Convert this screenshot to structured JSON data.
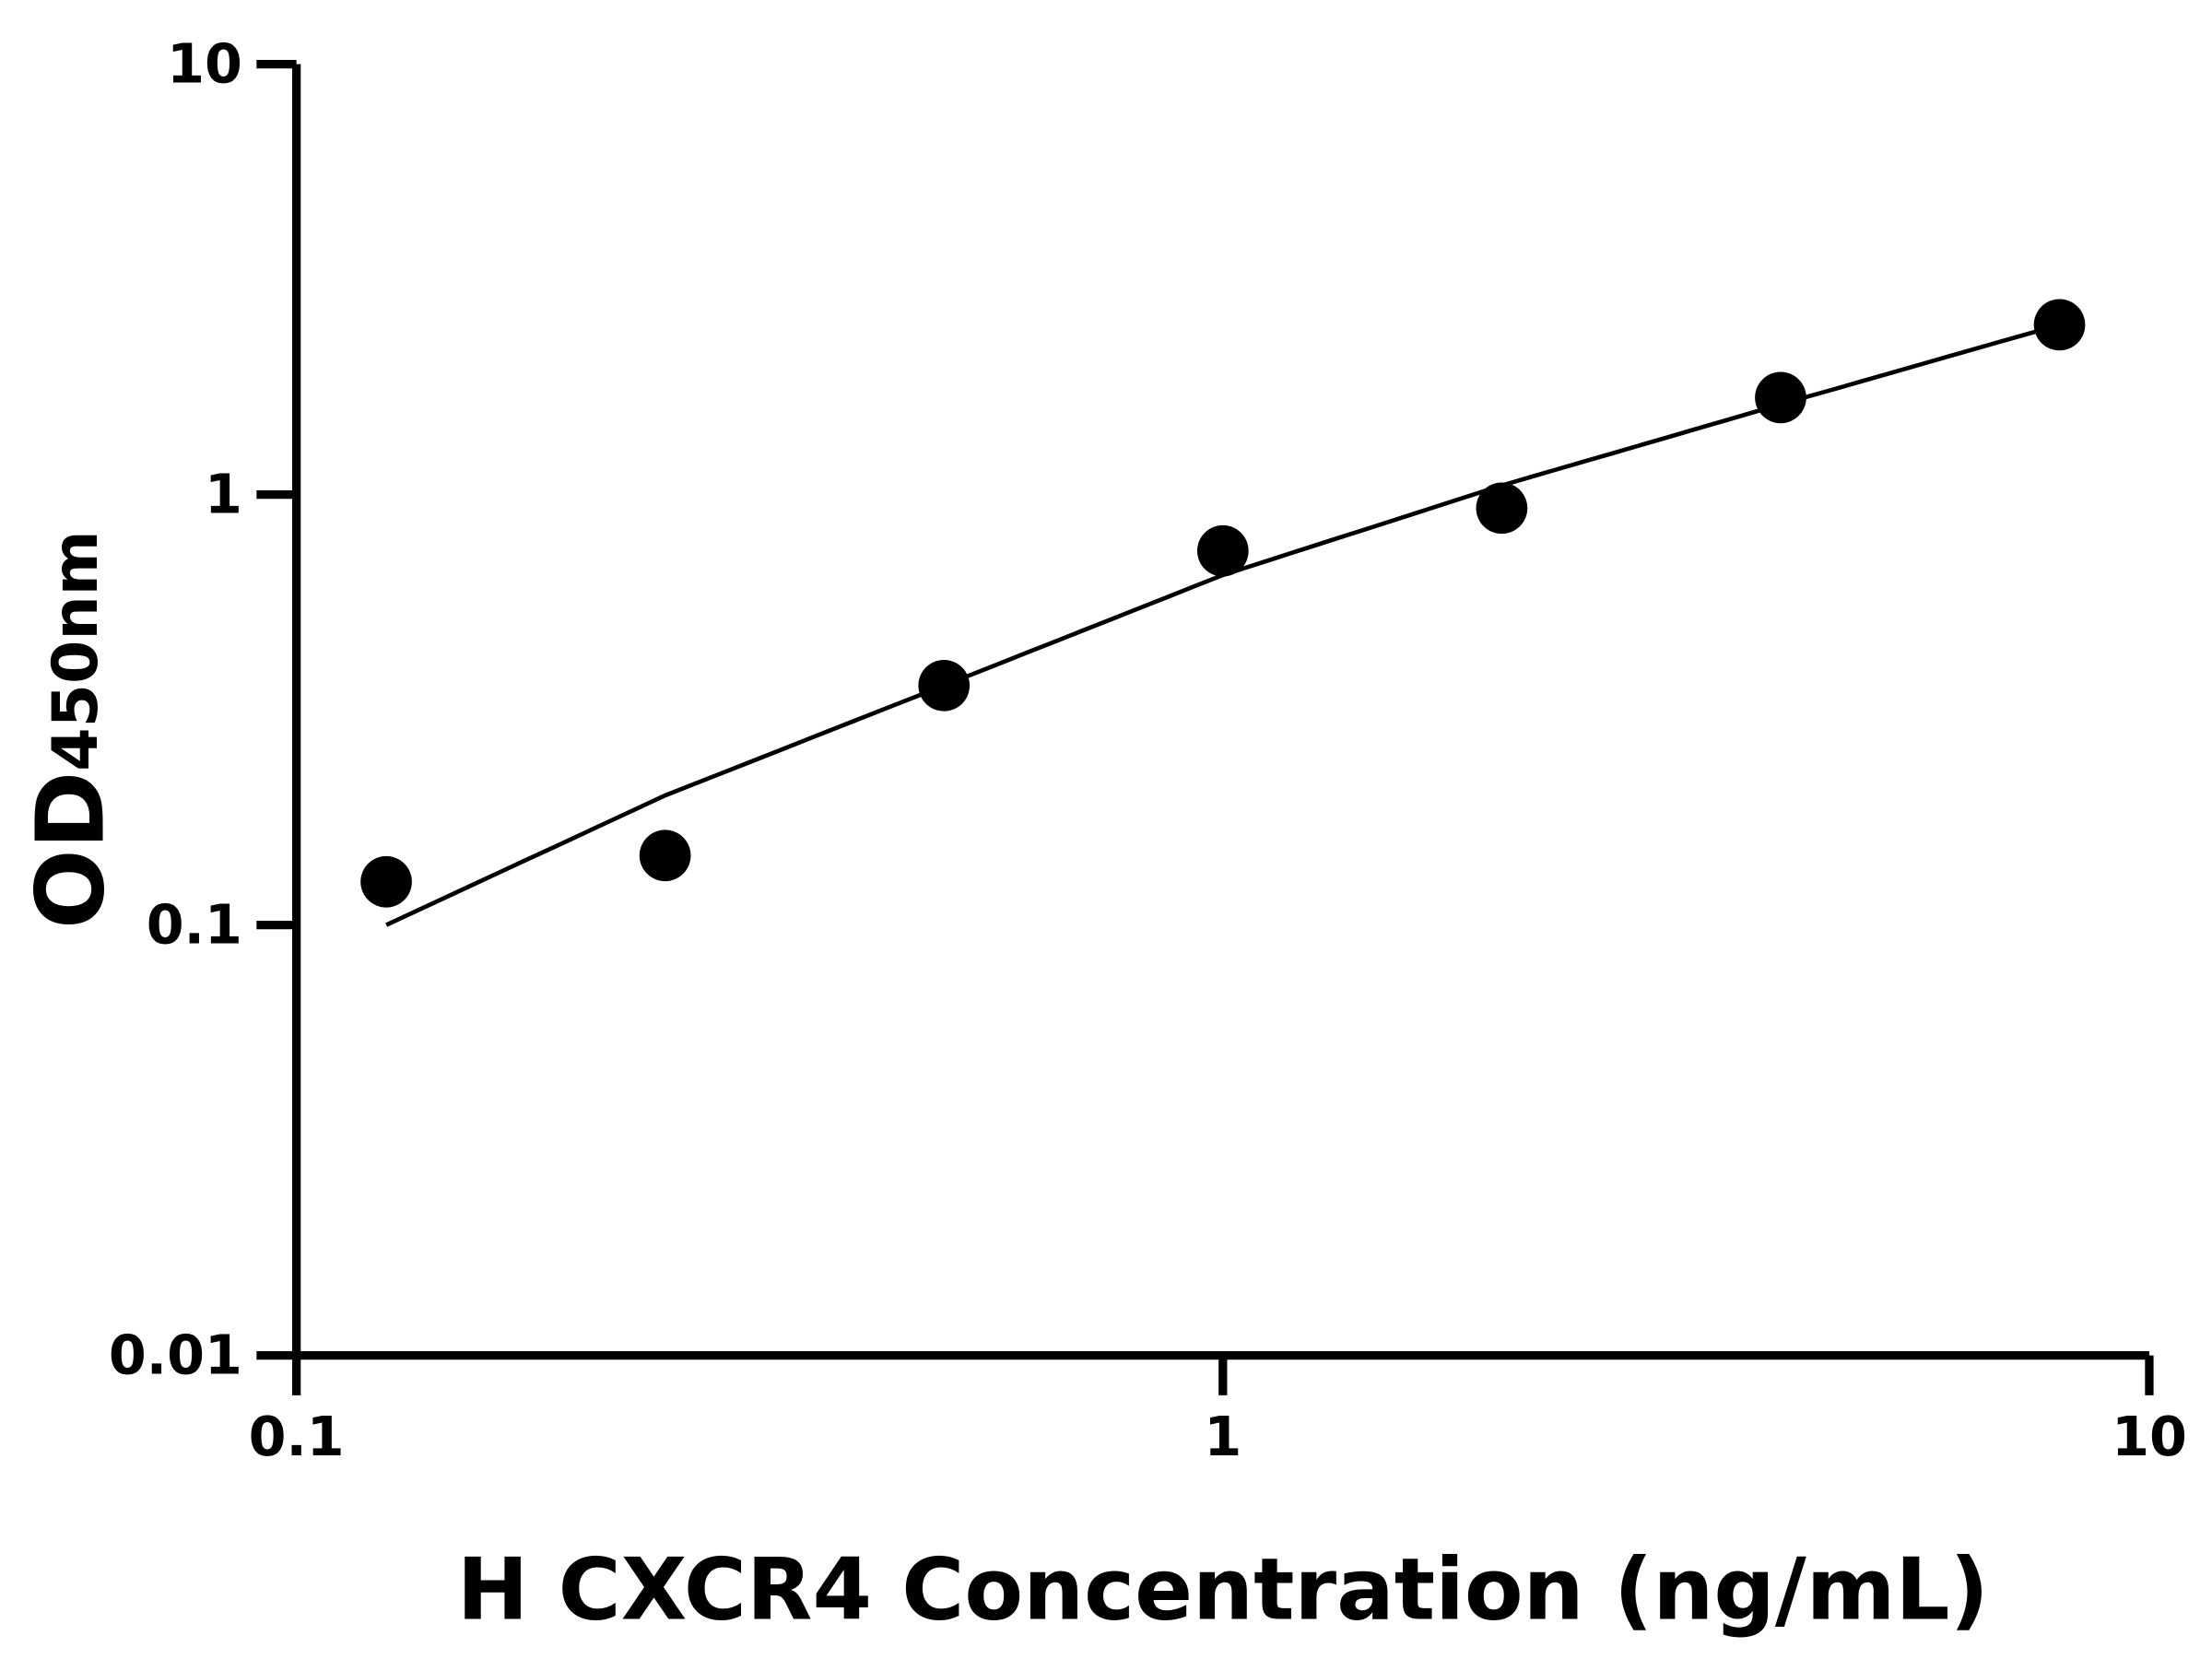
{
  "chart_data": {
    "type": "scatter",
    "title": "",
    "xlabel": "H CXCR4 Concentration (ng/mL)",
    "ylabel_main": "OD",
    "ylabel_sub": "450nm",
    "xscale": "log",
    "yscale": "log",
    "xlim": [
      0.1,
      10
    ],
    "ylim": [
      0.01,
      10
    ],
    "x_ticks": [
      0.1,
      1,
      10
    ],
    "x_tick_labels": [
      "0.1",
      "1",
      "10"
    ],
    "y_ticks": [
      0.01,
      0.1,
      1,
      10
    ],
    "y_tick_labels": [
      "0.01",
      "0.1",
      "1",
      "10"
    ],
    "grid": false,
    "legend": "none",
    "points": {
      "x": [
        0.125,
        0.25,
        0.5,
        1,
        2,
        4,
        8
      ],
      "y": [
        0.126,
        0.145,
        0.36,
        0.74,
        0.93,
        1.68,
        2.48
      ]
    },
    "fit_curve": {
      "x": [
        0.125,
        0.25,
        0.5,
        1,
        2,
        4,
        8
      ],
      "y": [
        0.1,
        0.2,
        0.36,
        0.65,
        1.05,
        1.62,
        2.48
      ]
    },
    "color": "#000000"
  }
}
